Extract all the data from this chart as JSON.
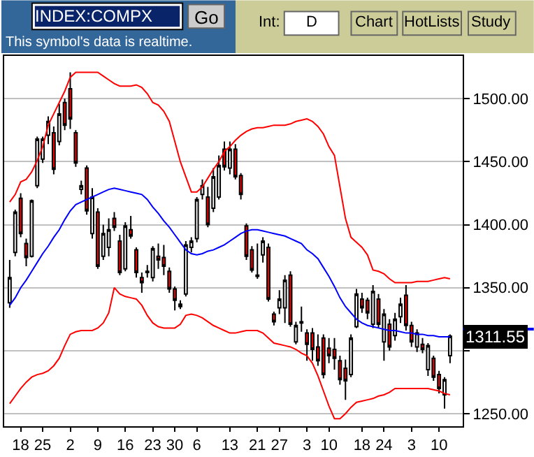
{
  "chart_data": {
    "type": "candlestick",
    "title": "INDEX:COMPX",
    "subtitle": "This symbol's data is realtime.",
    "categories": [
      null,
      null,
      "18",
      null,
      null,
      null,
      "25",
      null,
      null,
      null,
      null,
      "2",
      null,
      null,
      null,
      null,
      "9",
      null,
      null,
      null,
      null,
      "16",
      null,
      null,
      null,
      null,
      "23",
      null,
      null,
      null,
      "30",
      null,
      null,
      null,
      "6",
      null,
      null,
      null,
      null,
      null,
      "13",
      null,
      null,
      null,
      null,
      "21",
      null,
      null,
      null,
      "27",
      null,
      null,
      null,
      null,
      "3",
      null,
      null,
      null,
      "10",
      null,
      null,
      null,
      null,
      null,
      "18",
      null,
      null,
      null,
      "24",
      null,
      null,
      null,
      null,
      "3",
      null,
      null,
      null,
      null,
      "10",
      null,
      null
    ],
    "ohlc": [
      [
        1338,
        1372,
        1334,
        1358
      ],
      [
        1378,
        1412,
        1375,
        1410
      ],
      [
        1421,
        1425,
        1390,
        1393
      ],
      [
        1385,
        1389,
        1367,
        1374
      ],
      [
        1375,
        1420,
        1374,
        1419
      ],
      [
        1431,
        1470,
        1429,
        1468
      ],
      [
        1452,
        1470,
        1449,
        1468
      ],
      [
        1471,
        1486,
        1464,
        1482
      ],
      [
        1473,
        1478,
        1440,
        1444
      ],
      [
        1466,
        1496,
        1463,
        1488
      ],
      [
        1497,
        1500,
        1475,
        1479
      ],
      [
        1508,
        1521,
        1476,
        1484
      ],
      [
        1473,
        1475,
        1446,
        1449
      ],
      [
        1428,
        1435,
        1424,
        1431
      ],
      [
        1445,
        1447,
        1408,
        1411
      ],
      [
        1393,
        1429,
        1389,
        1422
      ],
      [
        1410,
        1413,
        1365,
        1367
      ],
      [
        1375,
        1400,
        1372,
        1393
      ],
      [
        1382,
        1405,
        1375,
        1396
      ],
      [
        1405,
        1410,
        1395,
        1398
      ],
      [
        1387,
        1392,
        1360,
        1362
      ],
      [
        1365,
        1402,
        1363,
        1399
      ],
      [
        1396,
        1407,
        1389,
        1391
      ],
      [
        1380,
        1382,
        1358,
        1362
      ],
      [
        1358,
        1362,
        1346,
        1354
      ],
      [
        1363,
        1368,
        1358,
        1362
      ],
      [
        1358,
        1383,
        1355,
        1381
      ],
      [
        1375,
        1385,
        1365,
        1372
      ],
      [
        1374,
        1384,
        1360,
        1367
      ],
      [
        1363,
        1366,
        1346,
        1349
      ],
      [
        1349,
        1351,
        1332,
        1340
      ],
      [
        1337,
        1340,
        1333,
        1335
      ],
      [
        1345,
        1387,
        1343,
        1384
      ],
      [
        1382,
        1390,
        1378,
        1387
      ],
      [
        1389,
        1422,
        1386,
        1420
      ],
      [
        1424,
        1436,
        1420,
        1431
      ],
      [
        1422,
        1430,
        1398,
        1400
      ],
      [
        1413,
        1445,
        1410,
        1438
      ],
      [
        1422,
        1455,
        1420,
        1447
      ],
      [
        1460,
        1466,
        1443,
        1446
      ],
      [
        1445,
        1466,
        1440,
        1460
      ],
      [
        1460,
        1464,
        1436,
        1438
      ],
      [
        1439,
        1441,
        1420,
        1424
      ],
      [
        1399,
        1401,
        1372,
        1375
      ],
      [
        1380,
        1383,
        1362,
        1364
      ],
      [
        1360,
        1385,
        1357,
        1359
      ],
      [
        1376,
        1390,
        1370,
        1387
      ],
      [
        1382,
        1385,
        1339,
        1341
      ],
      [
        1329,
        1331,
        1320,
        1323
      ],
      [
        1334,
        1348,
        1329,
        1341
      ],
      [
        1334,
        1360,
        1322,
        1356
      ],
      [
        1360,
        1363,
        1319,
        1321
      ],
      [
        1307,
        1323,
        1305,
        1320
      ],
      [
        1323,
        1335,
        1315,
        1322
      ],
      [
        1314,
        1317,
        1292,
        1305
      ],
      [
        1314,
        1318,
        1292,
        1301
      ],
      [
        1303,
        1313,
        1288,
        1292
      ],
      [
        1310,
        1313,
        1278,
        1281
      ],
      [
        1302,
        1310,
        1290,
        1296
      ],
      [
        1301,
        1310,
        1285,
        1294
      ],
      [
        1292,
        1296,
        1273,
        1277
      ],
      [
        1286,
        1293,
        1261,
        1276
      ],
      [
        1281,
        1313,
        1279,
        1310
      ],
      [
        1319,
        1349,
        1318,
        1345
      ],
      [
        1341,
        1346,
        1330,
        1334
      ],
      [
        1340,
        1342,
        1325,
        1330
      ],
      [
        1321,
        1352,
        1318,
        1347
      ],
      [
        1341,
        1345,
        1318,
        1321
      ],
      [
        1307,
        1333,
        1292,
        1329
      ],
      [
        1321,
        1325,
        1300,
        1303
      ],
      [
        1312,
        1330,
        1308,
        1325
      ],
      [
        1327,
        1342,
        1322,
        1337
      ],
      [
        1344,
        1352,
        1316,
        1320
      ],
      [
        1320,
        1323,
        1303,
        1307
      ],
      [
        1303,
        1317,
        1299,
        1314
      ],
      [
        1305,
        1310,
        1298,
        1301
      ],
      [
        1285,
        1306,
        1280,
        1304
      ],
      [
        1294,
        1296,
        1276,
        1279
      ],
      [
        1281,
        1284,
        1266,
        1270
      ],
      [
        1265,
        1279,
        1254,
        1277
      ],
      [
        1296,
        1313,
        1290,
        1311.55
      ]
    ],
    "series": [
      {
        "type": "line",
        "color": "#ff0000",
        "values": [
          1418,
          1424,
          1434,
          1436,
          1442,
          1451,
          1462,
          1479,
          1488,
          1497,
          1506,
          1517,
          1521,
          1521,
          1521,
          1521,
          1521,
          1518,
          1515,
          1512,
          1510,
          1510,
          1510,
          1511,
          1509,
          1504,
          1497,
          1495,
          1490,
          1482,
          1466,
          1450,
          1438,
          1426,
          1426,
          1430,
          1437,
          1444,
          1450,
          1458,
          1462,
          1467,
          1471,
          1474,
          1476,
          1477,
          1477,
          1478,
          1479,
          1479,
          1479,
          1480,
          1482,
          1483,
          1484,
          1482,
          1478,
          1472,
          1462,
          1455,
          1430,
          1405,
          1390,
          1386,
          1382,
          1376,
          1364,
          1363,
          1361,
          1357,
          1354,
          1354,
          1354,
          1354,
          1355,
          1355,
          1355,
          1356,
          1357,
          1358,
          1357
        ]
      },
      {
        "type": "line",
        "color": "#0000ff",
        "values": [
          1336,
          1342,
          1350,
          1356,
          1363,
          1370,
          1377,
          1383,
          1390,
          1396,
          1404,
          1411,
          1416,
          1418,
          1420,
          1422,
          1424,
          1426,
          1428,
          1429,
          1428,
          1427,
          1426,
          1425,
          1424,
          1420,
          1414,
          1409,
          1403,
          1398,
          1392,
          1386,
          1380,
          1377,
          1376,
          1377,
          1379,
          1380,
          1382,
          1384,
          1387,
          1390,
          1393,
          1395,
          1396,
          1396,
          1395,
          1394,
          1393,
          1392,
          1391,
          1389,
          1387,
          1385,
          1380,
          1377,
          1373,
          1366,
          1359,
          1351,
          1342,
          1335,
          1330,
          1325,
          1322,
          1320,
          1319,
          1318,
          1317,
          1316,
          1316,
          1315,
          1314,
          1314,
          1313,
          1313,
          1312,
          1312,
          1311,
          1311,
          1311
        ]
      },
      {
        "type": "line",
        "color": "#ff0000",
        "values": [
          1258,
          1264,
          1270,
          1275,
          1279,
          1281,
          1282,
          1284,
          1288,
          1294,
          1304,
          1313,
          1315,
          1316,
          1316,
          1316,
          1318,
          1322,
          1330,
          1350,
          1345,
          1343,
          1342,
          1341,
          1336,
          1328,
          1322,
          1319,
          1318,
          1318,
          1318,
          1321,
          1328,
          1329,
          1328,
          1326,
          1323,
          1320,
          1318,
          1316,
          1314,
          1314,
          1315,
          1316,
          1316,
          1316,
          1314,
          1310,
          1306,
          1305,
          1304,
          1303,
          1301,
          1298,
          1296,
          1290,
          1280,
          1268,
          1256,
          1246,
          1246,
          1250,
          1255,
          1259,
          1260,
          1261,
          1262,
          1264,
          1265,
          1267,
          1270,
          1270,
          1270,
          1270,
          1270,
          1270,
          1270,
          1269,
          1268,
          1266,
          1265
        ]
      }
    ],
    "ylim": [
      1240,
      1534
    ],
    "yticks": [
      {
        "value": 1250,
        "label": "1250.00"
      },
      {
        "value": 1300,
        "label": null
      },
      {
        "value": 1350,
        "label": "1350.00"
      },
      {
        "value": 1400,
        "label": "1400.00"
      },
      {
        "value": 1450,
        "label": "1450.00"
      },
      {
        "value": 1500,
        "label": "1500.00"
      }
    ],
    "grid": "y",
    "annotations": [
      "Go",
      "Int:",
      "D",
      "Chart",
      "HotLists",
      "Study",
      "1311.55"
    ]
  }
}
